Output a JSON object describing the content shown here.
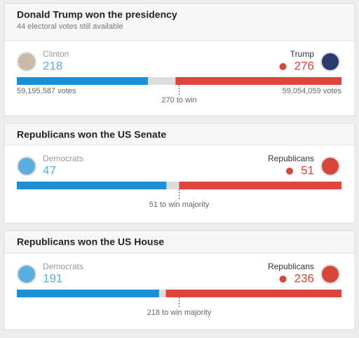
{
  "cards": [
    {
      "title": "Donald Trump won the presidency",
      "subtitle": "44 electoral votes still available",
      "left": {
        "name": "Clinton",
        "value": 218,
        "votes": "59,195,587 votes"
      },
      "right": {
        "name": "Trump",
        "value": 276,
        "votes": "59,054,059 votes"
      },
      "threshold": {
        "value": 270,
        "label": "270 to win"
      }
    },
    {
      "title": "Republicans won the US Senate",
      "left": {
        "name": "Democrats",
        "value": 47
      },
      "right": {
        "name": "Republicans",
        "value": 51
      },
      "threshold": {
        "value": 51,
        "label": "51 to win majority"
      }
    },
    {
      "title": "Republicans won the US House",
      "left": {
        "name": "Democrats",
        "value": 191
      },
      "right": {
        "name": "Republicans",
        "value": 236
      },
      "threshold": {
        "value": 218,
        "label": "218 to win majority"
      }
    }
  ]
}
